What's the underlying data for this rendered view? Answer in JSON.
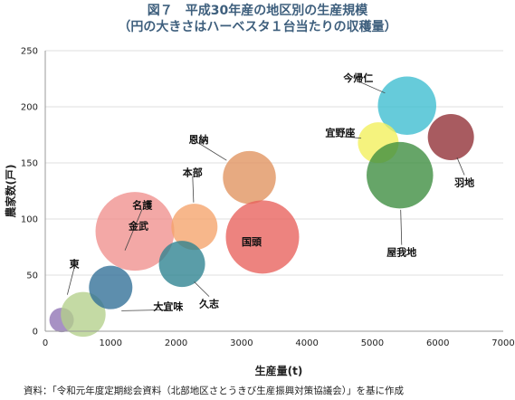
{
  "title": "図７　平成30年産の地区別の生産規模",
  "subtitle": "（円の大きさはハーベスタ１台当たりの収穫量）",
  "source": "資料：「令和元年度定期総会資料（北部地区さとうきび生産振興対策協議会）」を基に作成",
  "chart_data": {
    "type": "bubble",
    "xlabel": "生産量(t)",
    "ylabel": "農家数(戸)",
    "xlim": [
      0,
      7000
    ],
    "ylim": [
      0,
      250
    ],
    "xticks": [
      0,
      1000,
      2000,
      3000,
      4000,
      5000,
      6000,
      7000
    ],
    "yticks": [
      0,
      50,
      100,
      150,
      200,
      250
    ],
    "grid": true,
    "legend": "none",
    "series": [
      {
        "name": "東",
        "x": 250,
        "y": 10,
        "size": 1.8,
        "color": "#8e72b4"
      },
      {
        "name": "大宜味",
        "x": 580,
        "y": 15,
        "size": 3.3,
        "color": "#b3d08a"
      },
      {
        "name": "名護",
        "x": 1000,
        "y": 39,
        "size": 3.2,
        "color": "#2f6e96"
      },
      {
        "name": "金武",
        "x": 1370,
        "y": 89,
        "size": 5.8,
        "color": "#ef8f8d"
      },
      {
        "name": "本部",
        "x": 2280,
        "y": 93,
        "size": 3.4,
        "color": "#f5a36a"
      },
      {
        "name": "久志",
        "x": 2090,
        "y": 60,
        "size": 3.4,
        "color": "#2c8190"
      },
      {
        "name": "恩納",
        "x": 3120,
        "y": 137,
        "size": 3.9,
        "color": "#e0925e"
      },
      {
        "name": "国頭",
        "x": 3320,
        "y": 84,
        "size": 5.4,
        "color": "#e8605b"
      },
      {
        "name": "今帰仁",
        "x": 5530,
        "y": 201,
        "size": 4.3,
        "color": "#3bbcd0"
      },
      {
        "name": "宜野座",
        "x": 5090,
        "y": 168,
        "size": 3.0,
        "color": "#f2ef5a"
      },
      {
        "name": "羽地",
        "x": 6200,
        "y": 173,
        "size": 3.4,
        "color": "#8f2d33"
      },
      {
        "name": "屋我地",
        "x": 5420,
        "y": 139,
        "size": 4.9,
        "color": "#3b8c3d"
      }
    ]
  }
}
